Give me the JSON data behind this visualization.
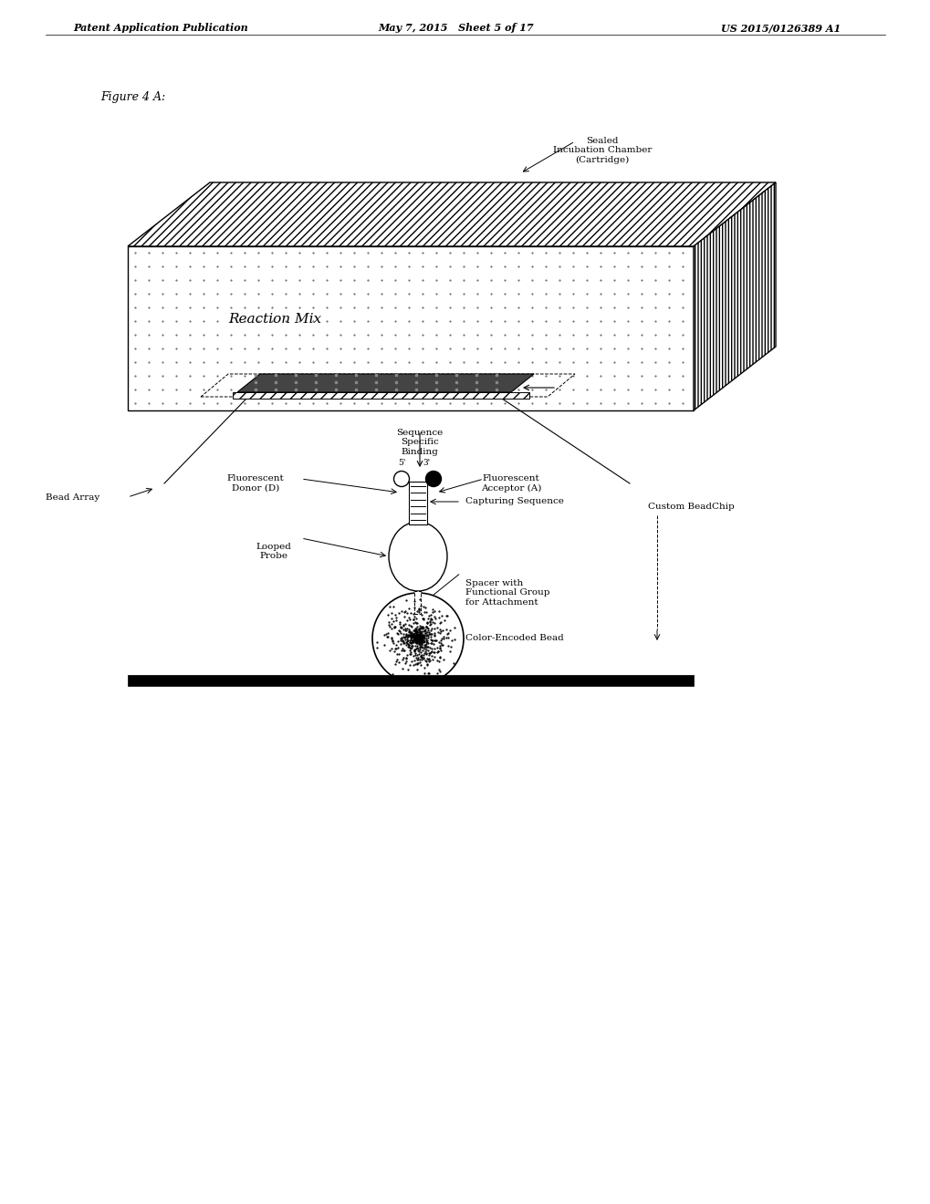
{
  "header_left": "Patent Application Publication",
  "header_center": "May 7, 2015   Sheet 5 of 17",
  "header_right": "US 2015/0126389 A1",
  "figure_label": "Figure 4 A:",
  "label_sealed_chamber": "Sealed\nIncubation Chamber\n(Cartridge)",
  "label_reaction_mix": "Reaction Mix",
  "label_sequence_specific": "Sequence\nSpecific\nBinding",
  "label_bead_array": "Bead Array",
  "label_fluorescent_donor": "Fluorescent\nDonor (D)",
  "label_fluorescent_acceptor": "Fluorescent\nAcceptor (A)",
  "label_custom_beadchip": "Custom BeadChip",
  "label_looped_probe": "Looped\nProbe",
  "label_capturing_sequence": "Capturing Sequence",
  "label_spacer": "Spacer with\nFunctional Group\nfor Attachment",
  "label_color_encoded_bead": "Color-Encoded Bead",
  "bg_color": "#ffffff",
  "text_color": "#000000"
}
